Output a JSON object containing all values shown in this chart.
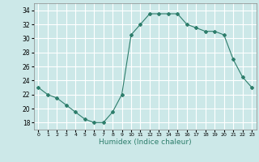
{
  "x": [
    0,
    1,
    2,
    3,
    4,
    5,
    6,
    7,
    8,
    9,
    10,
    11,
    12,
    13,
    14,
    15,
    16,
    17,
    18,
    19,
    20,
    21,
    22,
    23
  ],
  "y": [
    23,
    22,
    21.5,
    20.5,
    19.5,
    18.5,
    18,
    18,
    19.5,
    22,
    30.5,
    32,
    33.5,
    33.5,
    33.5,
    33.5,
    32,
    31.5,
    31,
    31,
    30.5,
    27,
    24.5,
    23
  ],
  "line_color": "#2d7d6b",
  "marker": "D",
  "marker_size": 2.0,
  "bg_color": "#cce8e8",
  "grid_color": "#ffffff",
  "xlabel": "Humidex (Indice chaleur)",
  "ylim": [
    17,
    35
  ],
  "xlim": [
    -0.5,
    23.5
  ],
  "yticks": [
    18,
    20,
    22,
    24,
    26,
    28,
    30,
    32,
    34
  ],
  "xtick_labels": [
    "0",
    "1",
    "2",
    "3",
    "4",
    "5",
    "6",
    "7",
    "8",
    "9",
    "10",
    "11",
    "12",
    "13",
    "14",
    "15",
    "16",
    "17",
    "18",
    "19",
    "20",
    "21",
    "22",
    "23"
  ]
}
